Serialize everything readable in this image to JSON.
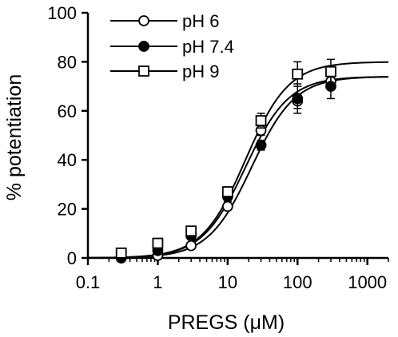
{
  "chart_data": {
    "type": "scatter",
    "xlabel": "PREGS (μM)",
    "ylabel": "% potentiation",
    "x_scale": "log",
    "xlim": [
      0.1,
      2000
    ],
    "ylim": [
      0,
      100
    ],
    "x_ticks": [
      "0.1",
      "1",
      "10",
      "100",
      "1000"
    ],
    "y_ticks": [
      "0",
      "20",
      "40",
      "60",
      "80",
      "100"
    ],
    "grid": false,
    "legend_position": "top-left",
    "series": [
      {
        "name": "pH 6",
        "marker": "open-circle",
        "x": [
          0.3,
          1,
          3,
          10,
          30,
          100,
          300
        ],
        "y": [
          0,
          1,
          5,
          21,
          52,
          64,
          72
        ],
        "error": [
          0,
          0,
          0,
          0,
          2,
          3,
          3
        ],
        "fit_max": 74,
        "fit_ec50": 22,
        "fit_hill": 1.4
      },
      {
        "name": "pH 7.4",
        "marker": "filled-circle",
        "x": [
          0.3,
          1,
          3,
          10,
          30,
          100,
          300
        ],
        "y": [
          0,
          3,
          9,
          25,
          46,
          65,
          70
        ],
        "error": [
          0,
          0,
          0,
          2,
          2,
          6,
          5
        ],
        "fit_max": 74,
        "fit_ec50": 18,
        "fit_hill": 1.4
      },
      {
        "name": "pH 9",
        "marker": "open-square",
        "x": [
          0.3,
          1,
          3,
          10,
          30,
          100,
          300
        ],
        "y": [
          2,
          6,
          11,
          27,
          56,
          75,
          76
        ],
        "error": [
          0,
          0,
          0,
          2,
          3,
          5,
          5
        ],
        "fit_max": 80,
        "fit_ec50": 18,
        "fit_hill": 1.4
      }
    ]
  }
}
